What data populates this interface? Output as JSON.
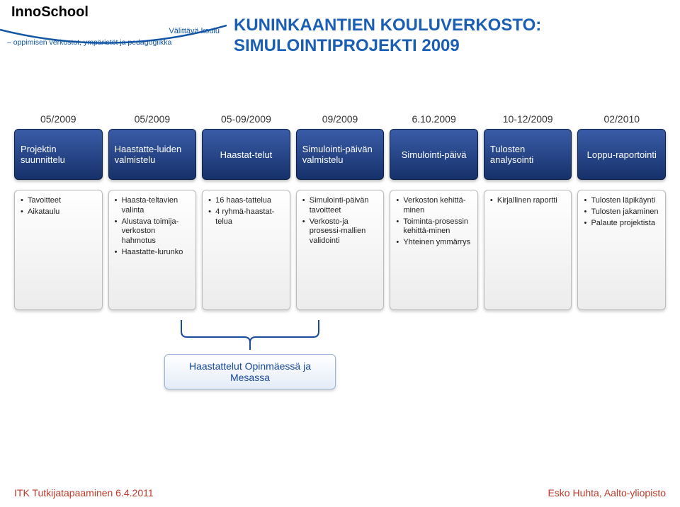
{
  "logo": {
    "brand": "InnoSchool",
    "subtitle": "Välittävä koulu",
    "tagline": "– oppimisen verkostot, ympäristöt ja pedagogiikka"
  },
  "title": {
    "line1": "KUNINKAANTIEN KOULUVERKOSTO:",
    "line2": "SIMULOINTIPROJEKTI 2009"
  },
  "columns": [
    {
      "date": "05/2009",
      "phase": "Projektin suunnittelu",
      "details": [
        "Tavoitteet",
        "Aikataulu"
      ]
    },
    {
      "date": "05/2009",
      "phase": "Haastatte-luiden valmistelu",
      "details": [
        "Haasta-teltavien valinta",
        "Alustava toimija-verkoston hahmotus",
        "Haastatte-lurunko"
      ]
    },
    {
      "date": "05-09/2009",
      "phase": "Haastat-telut",
      "details": [
        "16 haas-tattelua",
        "4 ryhmä-haastat-telua"
      ]
    },
    {
      "date": "09/2009",
      "phase": "Simulointi-päivän valmistelu",
      "details": [
        "Simulointi-päivän tavoitteet",
        "Verkosto-ja prosessi-mallien validointi"
      ]
    },
    {
      "date": "6.10.2009",
      "phase": "Simulointi-päivä",
      "details": [
        "Verkoston kehittä-minen",
        "Toiminta-prosessin kehittä-minen",
        "Yhteinen ymmärrys"
      ]
    },
    {
      "date": "10-12/2009",
      "phase": "Tulosten analysointi",
      "details": [
        "Kirjallinen raportti"
      ]
    },
    {
      "date": "02/2010",
      "phase": "Loppu-raportointi",
      "details": [
        "Tulosten läpikäynti",
        "Tulosten jakaminen",
        "Palaute projektista"
      ]
    }
  ],
  "group_label": "Haastattelut Opinmäessä ja Mesassa",
  "footer": {
    "left": "ITK Tutkijatapaaminen 6.4.2011",
    "right": "Esko Huhta, Aalto-yliopisto"
  },
  "style": {
    "title_color": "#1a5fb4",
    "phase_bg_top": "#3a5ca8",
    "phase_bg_bottom": "#16316a",
    "phase_text": "#ffffff",
    "detail_bg_top": "#ffffff",
    "detail_bg_bottom": "#ececec",
    "detail_border": "#bbbbbb",
    "group_border": "#9cb4d8",
    "group_text": "#1a4a9c",
    "footer_color": "#c0392b",
    "logo_text_color": "#1155a3",
    "title_fontsize": 24,
    "date_fontsize": 14,
    "phase_fontsize": 13,
    "detail_fontsize": 11,
    "group_fontsize": 14,
    "footer_fontsize": 14
  }
}
